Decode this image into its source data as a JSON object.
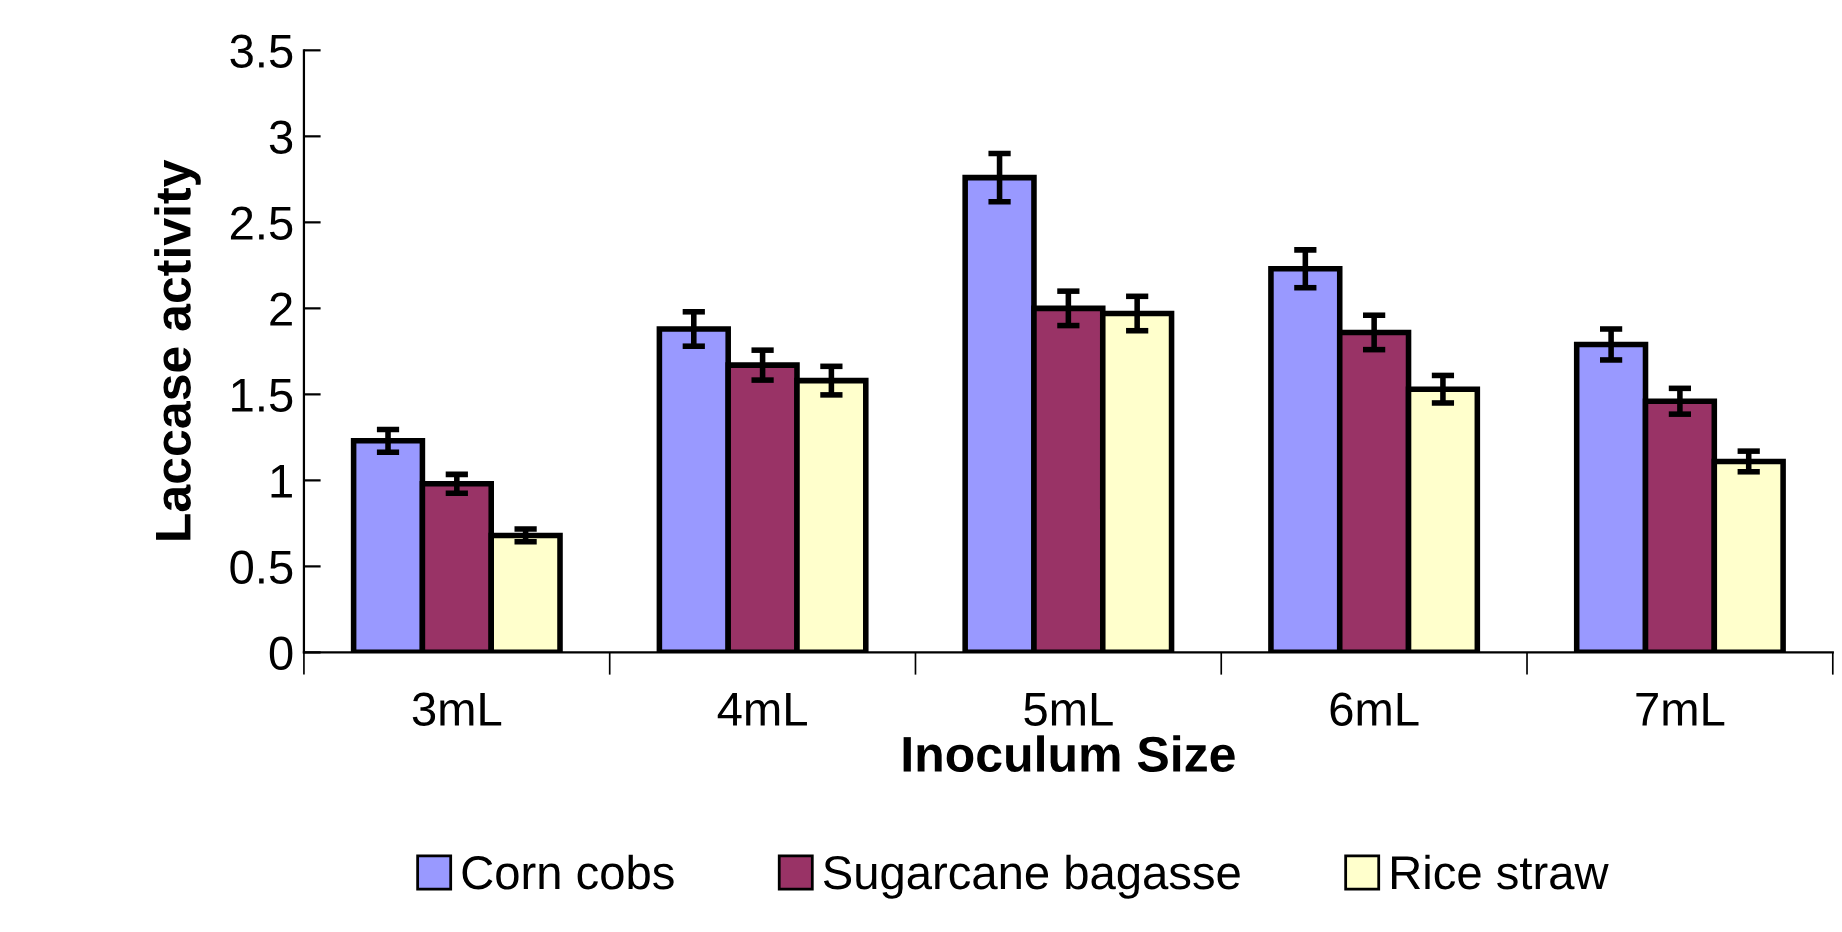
{
  "chart_data": {
    "type": "bar",
    "xlabel": "Inoculum Size",
    "ylabel": "Laccase activity",
    "categories": [
      "3mL",
      "4mL",
      "5mL",
      "6mL",
      "7mL"
    ],
    "series": [
      {
        "name": "Corn cobs",
        "color": "#9999ff",
        "values": [
          1.23,
          1.88,
          2.76,
          2.23,
          1.79
        ],
        "errors": [
          0.066,
          0.1,
          0.14,
          0.11,
          0.09
        ]
      },
      {
        "name": "Sugarcane bagasse",
        "color": "#993366",
        "values": [
          0.98,
          1.67,
          2.0,
          1.86,
          1.46
        ],
        "errors": [
          0.055,
          0.087,
          0.1,
          0.1,
          0.075
        ]
      },
      {
        "name": "Rice straw",
        "color": "#ffffcc",
        "values": [
          0.68,
          1.58,
          1.97,
          1.53,
          1.11
        ],
        "errors": [
          0.037,
          0.083,
          0.1,
          0.08,
          0.06
        ]
      }
    ],
    "ylim": [
      0,
      3.5
    ],
    "yticks": [
      0,
      0.5,
      1,
      1.5,
      2,
      2.5,
      3,
      3.5
    ],
    "grid": false,
    "legend": "bottom"
  }
}
